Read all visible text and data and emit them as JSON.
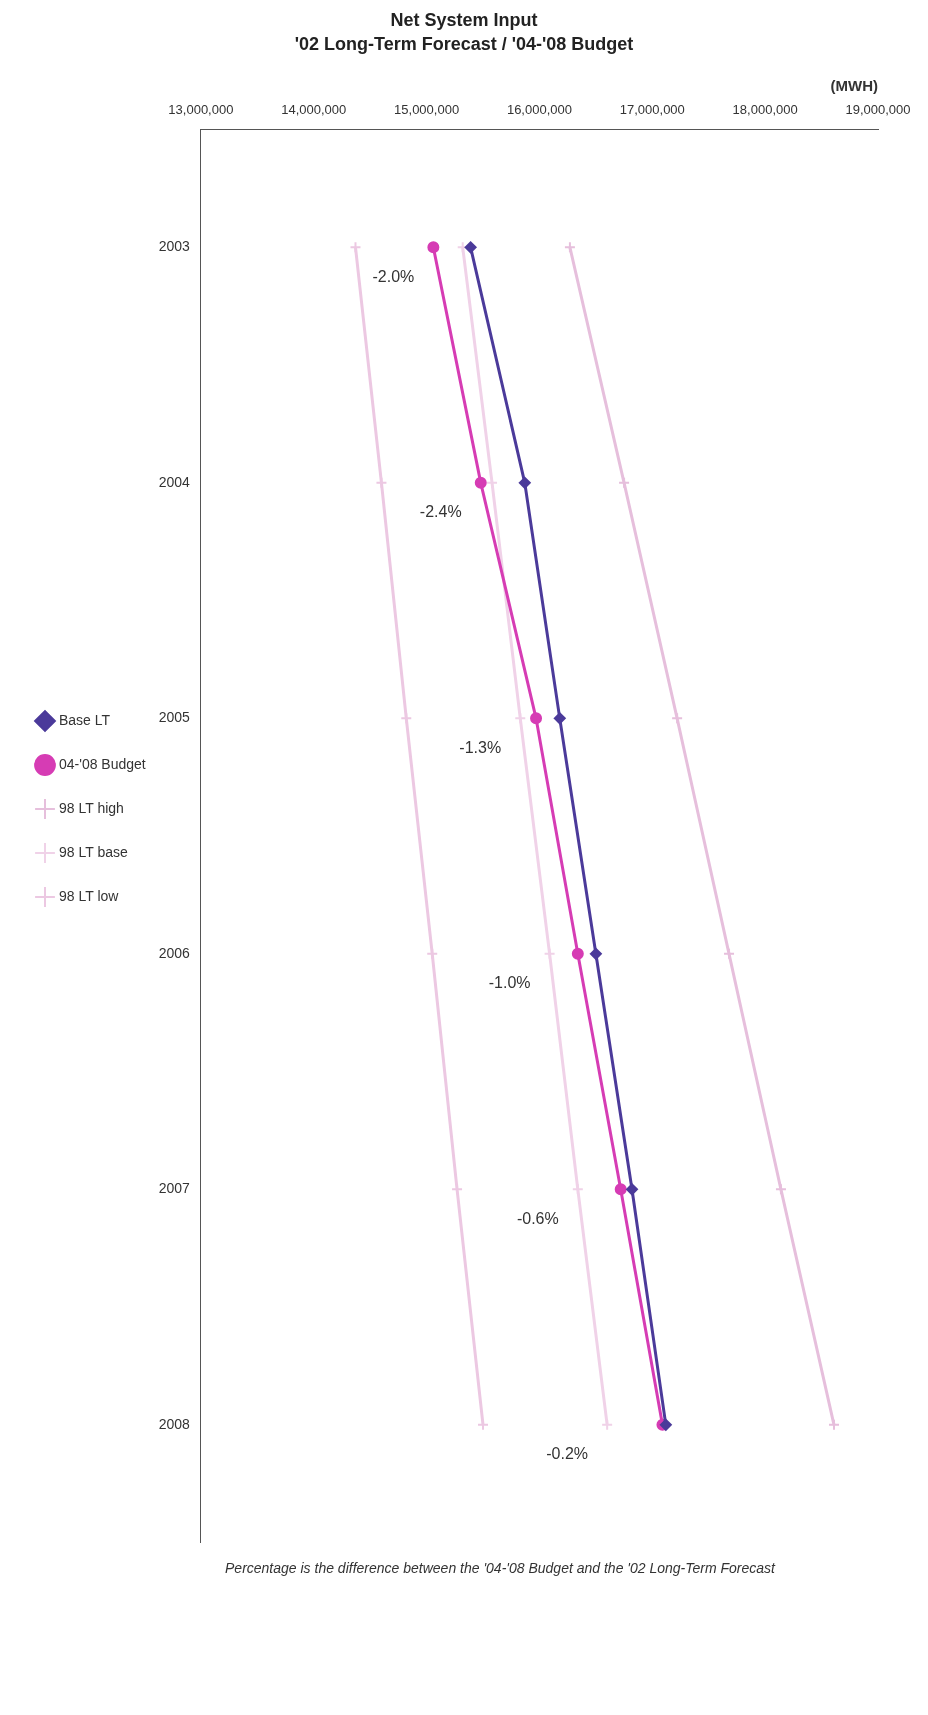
{
  "chart_data": {
    "type": "line",
    "orientation": "horizontal",
    "title": "Net System Input",
    "subtitle": "'02 Long-Term Forecast / '04-'08 Budget",
    "xlabel": "(MWH)",
    "categories": [
      "2003",
      "2004",
      "2005",
      "2006",
      "2007",
      "2008"
    ],
    "series": [
      {
        "name": "Base LT",
        "color": "#4b3a9a",
        "marker": "diamond",
        "values": [
          15390000,
          15870000,
          16180000,
          16500000,
          16820000,
          17120000
        ]
      },
      {
        "name": "04-'08 Budget",
        "color": "#d63cb4",
        "marker": "circle",
        "values": [
          15060000,
          15480000,
          15970000,
          16340000,
          16720000,
          17090000
        ]
      },
      {
        "name": "98 LT high",
        "color": "#e6bfdc",
        "marker": "cross",
        "values": [
          16270000,
          16750000,
          17220000,
          17680000,
          18140000,
          18610000
        ]
      },
      {
        "name": "98 LT base",
        "color": "#f0d2e8",
        "marker": "cross",
        "values": [
          15320000,
          15580000,
          15830000,
          16090000,
          16340000,
          16600000
        ]
      },
      {
        "name": "98 LT low",
        "color": "#ecc8e2",
        "marker": "cross",
        "values": [
          14370000,
          14600000,
          14820000,
          15050000,
          15270000,
          15500000
        ]
      }
    ],
    "xlim": [
      13000000,
      19000000
    ],
    "xticks": [
      {
        "value": 13000000,
        "label": "13,000,000"
      },
      {
        "value": 14000000,
        "label": "14,000,000"
      },
      {
        "value": 15000000,
        "label": "15,000,000"
      },
      {
        "value": 16000000,
        "label": "16,000,000"
      },
      {
        "value": 17000000,
        "label": "17,000,000"
      },
      {
        "value": 18000000,
        "label": "18,000,000"
      },
      {
        "value": 19000000,
        "label": "19,000,000"
      }
    ],
    "annotations": [
      "-2.0%",
      "-2.4%",
      "-1.3%",
      "-1.0%",
      "-0.6%",
      "-0.2%",
      "Percentage is the difference between the '04-'08 Budget and the '02 Long-Term Forecast"
    ],
    "legend": "left",
    "grid": false,
    "line_style": "solid"
  }
}
